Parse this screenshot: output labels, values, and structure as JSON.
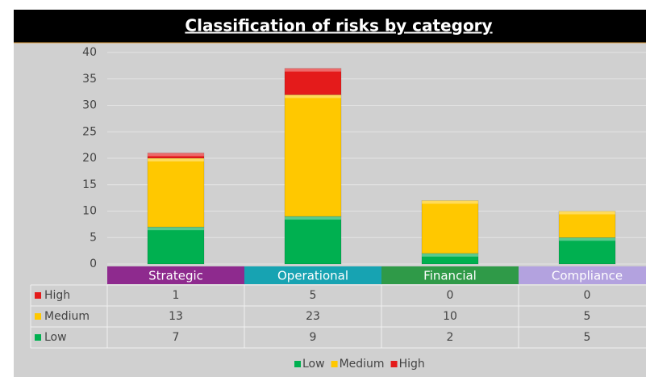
{
  "chart_data": {
    "type": "stacked_bar",
    "title": "Classification of risks by category",
    "categories": [
      "Strategic",
      "Operational",
      "Financial",
      "Compliance"
    ],
    "category_colors": [
      "#8e2a8e",
      "#17a3b2",
      "#2f9a48",
      "#b3a2df"
    ],
    "series": [
      {
        "name": "Low",
        "color": "#00b050",
        "values": [
          7,
          9,
          2,
          5
        ]
      },
      {
        "name": "Medium",
        "color": "#ffc800",
        "values": [
          13,
          23,
          10,
          5
        ]
      },
      {
        "name": "High",
        "color": "#e41b1b",
        "values": [
          1,
          5,
          0,
          0
        ]
      }
    ],
    "ylim": [
      0,
      40
    ],
    "yticks": [
      0,
      5,
      10,
      15,
      20,
      25,
      30,
      35,
      40
    ],
    "grid": true,
    "legend": "bottom"
  }
}
